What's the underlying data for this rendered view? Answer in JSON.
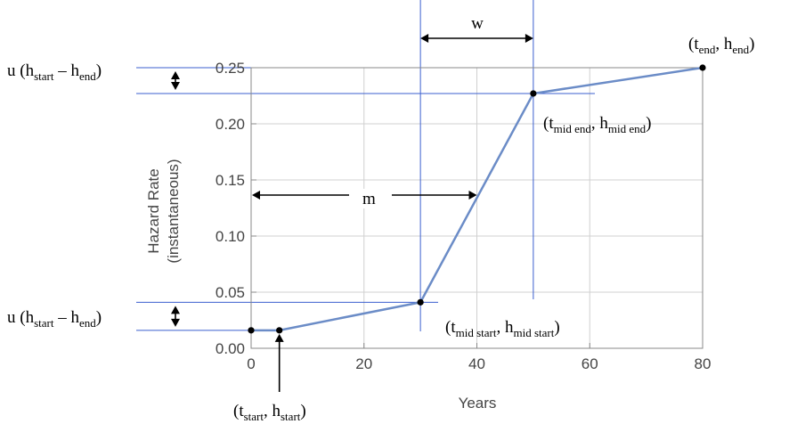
{
  "chart_data": {
    "type": "line",
    "xlabel": "Years",
    "ylabel_lines": [
      "Hazard Rate",
      "(instantaneous)"
    ],
    "xlim": [
      0,
      80
    ],
    "ylim": [
      0,
      0.25
    ],
    "xticks": [
      0,
      20,
      40,
      60,
      80
    ],
    "xtick_labels": [
      "0",
      "20",
      "40",
      "60",
      "80"
    ],
    "yticks": [
      0,
      0.05,
      0.1,
      0.15,
      0.2,
      0.25
    ],
    "ytick_labels": [
      "0.00",
      "0.05",
      "0.10",
      "0.15",
      "0.20",
      "0.25"
    ],
    "grid": true,
    "series": [
      {
        "color": "#6b8cc7",
        "points": [
          {
            "x": 0,
            "y": 0.016
          },
          {
            "x": 5,
            "y": 0.016
          },
          {
            "x": 30,
            "y": 0.041
          },
          {
            "x": 50,
            "y": 0.227
          },
          {
            "x": 80,
            "y": 0.25
          }
        ]
      }
    ],
    "annotations": {
      "point_labels": [
        {
          "id": "start",
          "main": [
            "(t",
            "start",
            ", h",
            "start",
            ")"
          ]
        },
        {
          "id": "mid_start",
          "main": [
            "(t",
            "mid start",
            ", h",
            "mid start",
            ")"
          ]
        },
        {
          "id": "mid_end",
          "main": [
            "(t",
            "mid end",
            ", h",
            "mid end",
            ")"
          ]
        },
        {
          "id": "end",
          "main": [
            "(t",
            "end",
            ", h",
            "end",
            ")"
          ]
        }
      ],
      "u_labels": [
        {
          "id": "u_top",
          "parts": [
            "u (h",
            "start",
            " – h",
            "end",
            ")"
          ]
        },
        {
          "id": "u_bottom",
          "parts": [
            "u (h",
            "start",
            " – h",
            "end",
            ")"
          ]
        }
      ],
      "width_label": "w",
      "midpoint_label": "m"
    },
    "colors": {
      "line": "#6b8cc7",
      "guide": "#3b5fcf",
      "grid": "#d0d0d0",
      "frame": "#888888",
      "marker": "#000000"
    }
  }
}
